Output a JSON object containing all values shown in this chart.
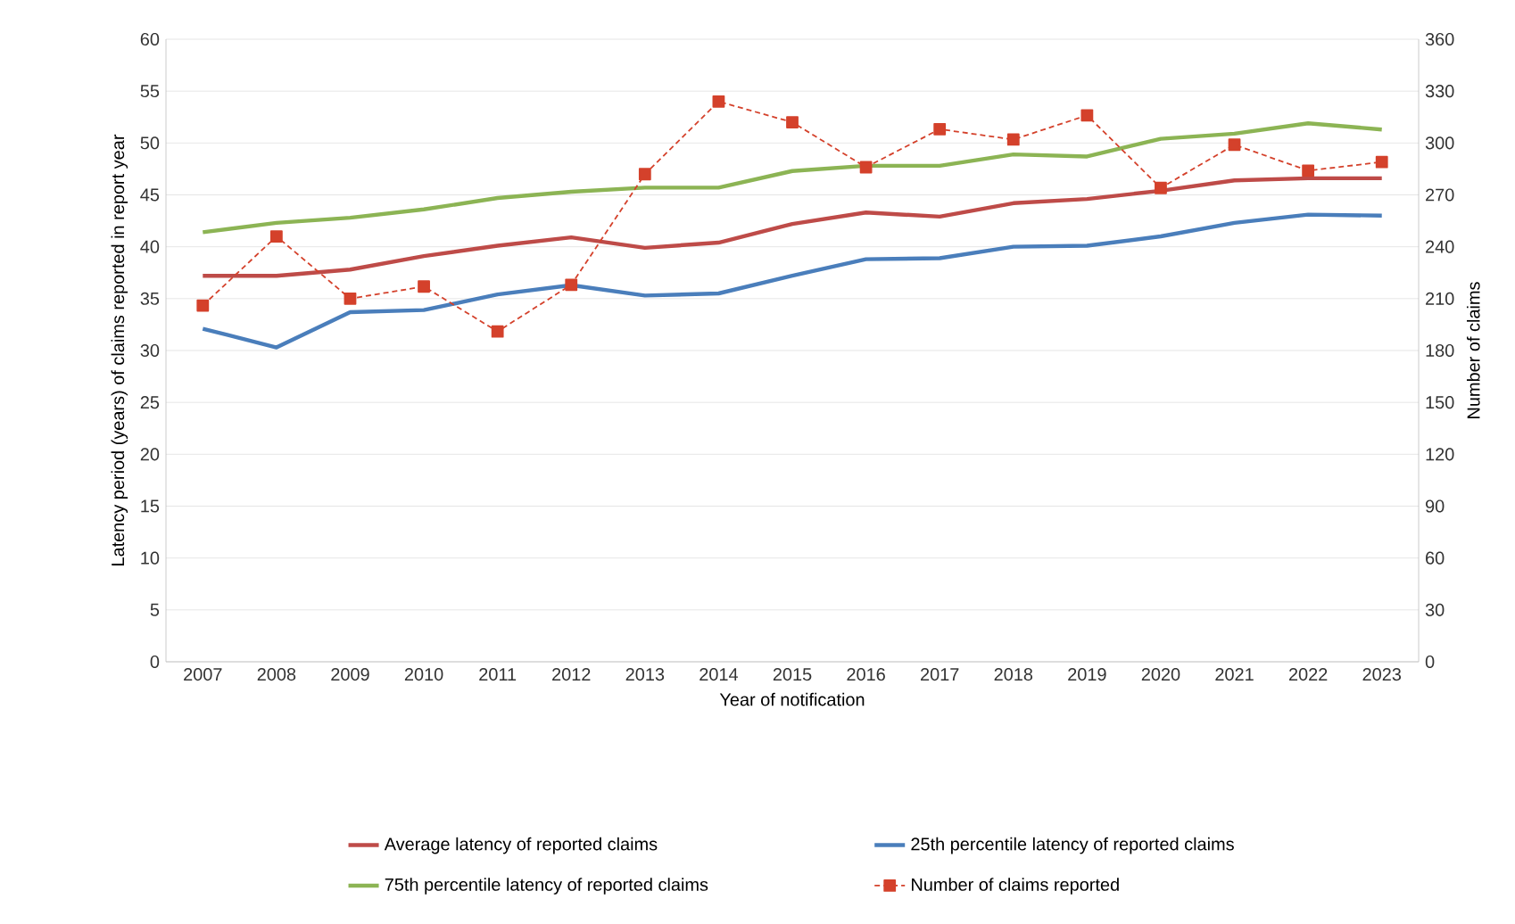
{
  "chart_data": {
    "type": "line",
    "xlabel": "Year of notification",
    "ylabel": "Latency period (years) of claims reported in report year",
    "y2label": "Number of claims",
    "categories": [
      "2007",
      "2008",
      "2009",
      "2010",
      "2011",
      "2012",
      "2013",
      "2014",
      "2015",
      "2016",
      "2017",
      "2018",
      "2019",
      "2020",
      "2021",
      "2022",
      "2023"
    ],
    "series": [
      {
        "name": "Average latency of reported claims",
        "color": "#be4b48",
        "values": [
          37.2,
          37.2,
          37.8,
          39.1,
          40.1,
          40.9,
          39.9,
          40.4,
          42.2,
          43.3,
          42.9,
          44.2,
          44.6,
          45.4,
          46.4,
          46.6,
          46.6
        ]
      },
      {
        "name": "25th percentile latency of reported claims",
        "color": "#4a7ebb",
        "values": [
          32.1,
          30.3,
          33.7,
          33.9,
          35.4,
          36.3,
          35.3,
          35.5,
          37.2,
          38.8,
          38.9,
          40.0,
          40.1,
          41.0,
          42.3,
          43.1,
          43.0
        ]
      },
      {
        "name": "75th percentile latency of reported claims",
        "color": "#8cb454",
        "values": [
          41.4,
          42.3,
          42.8,
          43.6,
          44.7,
          45.3,
          45.7,
          45.7,
          47.3,
          47.8,
          47.8,
          48.9,
          48.7,
          50.4,
          50.9,
          51.9,
          51.3
        ]
      },
      {
        "name": "Number of claims reported",
        "color": "#d4412b",
        "axis": "y2",
        "marker": "square",
        "line_style": "dashed",
        "values": [
          206,
          246,
          210,
          217,
          191,
          218,
          282,
          324,
          312,
          286,
          308,
          302,
          316,
          274,
          299,
          284,
          289
        ]
      }
    ],
    "ylim": [
      0,
      60
    ],
    "yticks": [
      0,
      5,
      10,
      15,
      20,
      25,
      30,
      35,
      40,
      45,
      50,
      55,
      60
    ],
    "y2lim": [
      0,
      360
    ],
    "y2ticks": [
      0,
      30,
      60,
      90,
      120,
      150,
      180,
      210,
      240,
      270,
      300,
      330,
      360
    ],
    "grid": "y",
    "legend": "bottom"
  }
}
